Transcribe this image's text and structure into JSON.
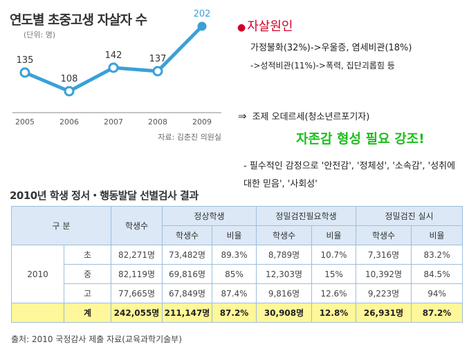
{
  "chart_data": {
    "type": "line",
    "title": "연도별 초중고생 자살자 수",
    "unit": "(단위: 명)",
    "source": "자료: 김춘진 의원실",
    "categories": [
      "2005",
      "2006",
      "2007",
      "2008",
      "2009"
    ],
    "values": [
      135,
      108,
      142,
      137,
      202
    ],
    "value_labels": [
      "135",
      "108",
      "142",
      "137",
      "202"
    ],
    "line_color": "#3aa0d8",
    "highlight_color": "#3aa0d8",
    "grid": false
  },
  "notes": {
    "title": "자살원인",
    "line1": "가정불화(32%)->우울증, 염세비관(18%)",
    "line2": "->성적비관(11%)->폭력, 집단괴롭힘 등",
    "ref_arrow": "⇒",
    "ref": "조제 오데르세(청소년르포기자)",
    "emphasis": "자존감 형성 필요 강조!",
    "list": "- 필수적인 감정으로 '안전감', '정체성', '소속감', '성취에 대한 믿음', '사회성'"
  },
  "table": {
    "title": "2010년 학생 정서・행동발달 선별검사 결과",
    "headers": {
      "category": "구 분",
      "students": "학생수",
      "normal": "정상학생",
      "needs_exam": "정밀검진필요학생",
      "examined": "정밀검진 실시",
      "count": "학생수",
      "ratio": "비율"
    },
    "year": "2010",
    "rows": [
      {
        "level": "초",
        "students": "82,271명",
        "normal_count": "73,482명",
        "normal_ratio": "89.3%",
        "needs_count": "8,789명",
        "needs_ratio": "10.7%",
        "exam_count": "7,316명",
        "exam_ratio": "83.2%"
      },
      {
        "level": "중",
        "students": "82,119명",
        "normal_count": "69,816명",
        "normal_ratio": "85%",
        "needs_count": "12,303명",
        "needs_ratio": "15%",
        "exam_count": "10,392명",
        "exam_ratio": "84.5%"
      },
      {
        "level": "고",
        "students": "77,665명",
        "normal_count": "67,849명",
        "normal_ratio": "87.4%",
        "needs_count": "9,816명",
        "needs_ratio": "12.6%",
        "exam_count": "9,223명",
        "exam_ratio": "94%"
      }
    ],
    "total": {
      "level": "계",
      "students": "242,055명",
      "normal_count": "211,147명",
      "normal_ratio": "87.2%",
      "needs_count": "30,908명",
      "needs_ratio": "12.8%",
      "exam_count": "26,931명",
      "exam_ratio": "87.2%"
    },
    "source": "출처: 2010 국정감사 제출 자료(교육과학기술부)"
  },
  "colors": {
    "accent_red": "#d0002a",
    "accent_green": "#1bbf1b",
    "header_blue": "#dce8f5",
    "total_yellow": "#fff799"
  }
}
